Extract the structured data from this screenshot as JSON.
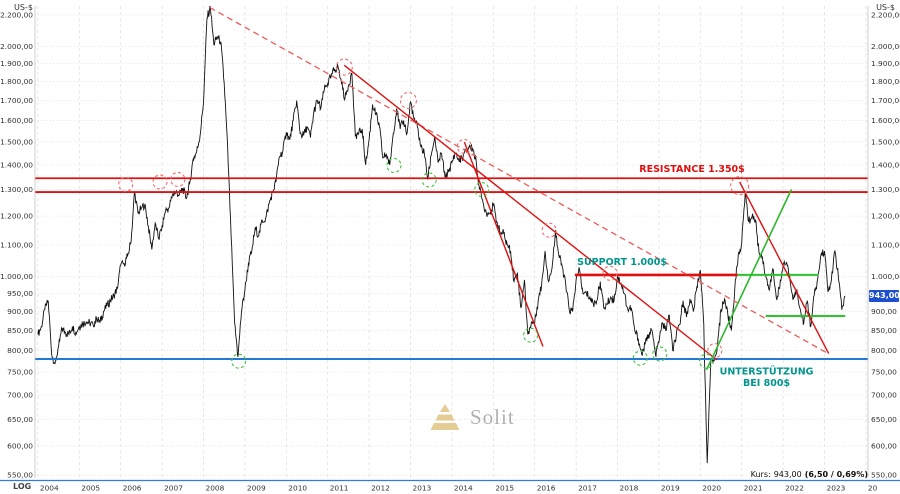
{
  "header": {
    "currency_left": "US-$",
    "currency_right": "US-$"
  },
  "footer": {
    "scale_label": "LOG",
    "quote_prefix": "Kurs:",
    "quote_value": "943,00",
    "quote_change": "(6,50 / 0,69%)"
  },
  "price_tag": {
    "value": "943,00",
    "bg_color": "#1d4fd0"
  },
  "watermark": {
    "text": "Solit",
    "pyramid_color": "#d8b867"
  },
  "colors": {
    "resistance_red": "#e01010",
    "support_blue": "#2478d8",
    "trend_green": "#2db82d",
    "label_teal": "#00958d"
  },
  "chart_data": {
    "type": "line",
    "yscale": "log",
    "ylim": [
      545,
      2260
    ],
    "xlim": [
      2003.93,
      2024.05
    ],
    "grid": true,
    "series": [
      {
        "name": "price",
        "color": "#111111",
        "start_year": 2004,
        "interval": "monthly",
        "values": [
          840,
          860,
          905,
          930,
          790,
          770,
          810,
          855,
          845,
          840,
          860,
          845,
          860,
          868,
          872,
          870,
          865,
          880,
          872,
          900,
          915,
          930,
          945,
          965,
          1035,
          1040,
          1065,
          1110,
          1290,
          1210,
          1230,
          1245,
          1165,
          1085,
          1175,
          1120,
          1165,
          1220,
          1230,
          1280,
          1290,
          1280,
          1305,
          1265,
          1325,
          1425,
          1455,
          1530,
          1690,
          2180,
          2250,
          2010,
          2060,
          2030,
          1790,
          1470,
          1130,
          870,
          785,
          900,
          960,
          1040,
          1080,
          1160,
          1130,
          1185,
          1190,
          1245,
          1290,
          1330,
          1435,
          1460,
          1545,
          1510,
          1600,
          1700,
          1540,
          1530,
          1570,
          1520,
          1645,
          1700,
          1660,
          1755,
          1790,
          1830,
          1870,
          1880,
          1790,
          1710,
          1780,
          1845,
          1530,
          1540,
          1560,
          1400,
          1510,
          1680,
          1630,
          1570,
          1430,
          1445,
          1400,
          1540,
          1660,
          1560,
          1600,
          1540,
          1695,
          1610,
          1570,
          1480,
          1450,
          1340,
          1440,
          1525,
          1410,
          1450,
          1350,
          1370,
          1410,
          1450,
          1420,
          1430,
          1460,
          1480,
          1470,
          1420,
          1300,
          1250,
          1210,
          1210,
          1240,
          1180,
          1140,
          1140,
          1100,
          1080,
          985,
          1010,
          910,
          990,
          840,
          870,
          870,
          930,
          975,
          1080,
          985,
          1025,
          1150,
          1065,
          1030,
          975,
          905,
          900,
          990,
          1020,
          950,
          950,
          940,
          920,
          930,
          985,
          910,
          920,
          940,
          930,
          1000,
          980,
          950,
          905,
          910,
          850,
          830,
          790,
          815,
          840,
          850,
          790,
          820,
          870,
          850,
          890,
          800,
          835,
          865,
          930,
          885,
          935,
          900,
          970,
          1020,
          865,
          570,
          770,
          775,
          815,
          905,
          935,
          890,
          850,
          965,
          1070,
          1105,
          1290,
          1180,
          1200,
          1185,
          1075,
          1060,
          1000,
          960,
          1025,
          940,
          965,
          1035,
          1045,
          990,
          935,
          960,
          905,
          870,
          930,
          860,
          945,
          990,
          1070,
          1080,
          955,
          990,
          1080,
          1000,
          905,
          943
        ]
      }
    ],
    "y_ticks": [
      {
        "v": 2200,
        "label": "2.200,00"
      },
      {
        "v": 2000,
        "label": "2.000,00"
      },
      {
        "v": 1900,
        "label": "1.900,00"
      },
      {
        "v": 1800,
        "label": "1.800,00"
      },
      {
        "v": 1700,
        "label": "1.700,00"
      },
      {
        "v": 1600,
        "label": "1.600,00"
      },
      {
        "v": 1500,
        "label": "1.500,00"
      },
      {
        "v": 1400,
        "label": "1.400,00"
      },
      {
        "v": 1300,
        "label": "1.300,00"
      },
      {
        "v": 1200,
        "label": "1.200,00"
      },
      {
        "v": 1100,
        "label": "1.100,00"
      },
      {
        "v": 1000,
        "label": "1.000,00"
      },
      {
        "v": 950,
        "label": "950,00"
      },
      {
        "v": 900,
        "label": "900,00"
      },
      {
        "v": 850,
        "label": "850,00"
      },
      {
        "v": 800,
        "label": "800,00"
      },
      {
        "v": 750,
        "label": "750,00"
      },
      {
        "v": 700,
        "label": "700,00"
      },
      {
        "v": 650,
        "label": "650,00"
      },
      {
        "v": 600,
        "label": "600,00"
      },
      {
        "v": 550,
        "label": "550,00"
      }
    ],
    "x_ticks": [
      {
        "v": 2004,
        "label": "2004"
      },
      {
        "v": 2005,
        "label": "2005"
      },
      {
        "v": 2006,
        "label": "2006"
      },
      {
        "v": 2007,
        "label": "2007"
      },
      {
        "v": 2008,
        "label": "2008"
      },
      {
        "v": 2009,
        "label": "2009"
      },
      {
        "v": 2010,
        "label": "2010"
      },
      {
        "v": 2011,
        "label": "2011"
      },
      {
        "v": 2012,
        "label": "2012"
      },
      {
        "v": 2013,
        "label": "2013"
      },
      {
        "v": 2014,
        "label": "2014"
      },
      {
        "v": 2015,
        "label": "2015"
      },
      {
        "v": 2016,
        "label": "2016"
      },
      {
        "v": 2017,
        "label": "2017"
      },
      {
        "v": 2018,
        "label": "2018"
      },
      {
        "v": 2019,
        "label": "2019"
      },
      {
        "v": 2020,
        "label": "2020"
      },
      {
        "v": 2021,
        "label": "2021"
      },
      {
        "v": 2022,
        "label": "2022"
      },
      {
        "v": 2023,
        "label": "2023"
      },
      {
        "v": 2024,
        "label": "20"
      }
    ],
    "annotations": {
      "hlines": [
        {
          "name": "resistance-line-upper",
          "price": 1345,
          "from": 2003.93,
          "to": 2024.05,
          "color": "#e01010",
          "width": 1.8
        },
        {
          "name": "resistance-line-lower",
          "price": 1290,
          "from": 2003.93,
          "to": 2024.05,
          "color": "#e01010",
          "width": 1.8
        },
        {
          "name": "support-800-line",
          "price": 780,
          "from": 2003.93,
          "to": 2024.05,
          "color": "#2478d8",
          "width": 2
        },
        {
          "name": "support-1000-segment",
          "price": 1005,
          "from": 2016.97,
          "to": 2020.9,
          "color": "#e01010",
          "width": 2.6
        },
        {
          "name": "green-level-1005",
          "price": 1005,
          "from": 2020.9,
          "to": 2022.85,
          "color": "#2dc32d",
          "width": 2
        },
        {
          "name": "green-level-890",
          "price": 888,
          "from": 2021.58,
          "to": 2023.5,
          "color": "#2dc32d",
          "width": 2
        }
      ],
      "trendlines": [
        {
          "name": "downtrend-dashed",
          "x1": 2008.15,
          "p1": 2250,
          "x2": 2023.05,
          "p2": 795,
          "color": "#f05a5a",
          "width": 1.3,
          "dash": "6,4"
        },
        {
          "name": "downtrend-main",
          "x1": 2011.4,
          "p1": 1890,
          "x2": 2020.4,
          "p2": 778,
          "color": "#e01010",
          "width": 1.4
        },
        {
          "name": "downtrend-steep",
          "x1": 2014.3,
          "p1": 1500,
          "x2": 2016.2,
          "p2": 810,
          "color": "#e01010",
          "width": 1.4
        },
        {
          "name": "downtrend-right",
          "x1": 2020.95,
          "p1": 1330,
          "x2": 2023.1,
          "p2": 793,
          "color": "#e01010",
          "width": 1.4
        },
        {
          "name": "uptrend-green",
          "x1": 2020.15,
          "p1": 755,
          "x2": 2022.2,
          "p2": 1300,
          "color": "#2db82d",
          "width": 1.6
        }
      ],
      "circles": [
        {
          "x": 2006.12,
          "p": 1320,
          "kind": "resistance",
          "color": "#f26a6a",
          "r": 7
        },
        {
          "x": 2006.95,
          "p": 1330,
          "kind": "resistance",
          "color": "#f26a6a",
          "r": 7
        },
        {
          "x": 2007.38,
          "p": 1340,
          "kind": "resistance",
          "color": "#f26a6a",
          "r": 7
        },
        {
          "x": 2011.4,
          "p": 1880,
          "kind": "resistance",
          "color": "#f26a6a",
          "r": 8
        },
        {
          "x": 2012.95,
          "p": 1700,
          "kind": "resistance",
          "color": "#f26a6a",
          "r": 8
        },
        {
          "x": 2014.3,
          "p": 1480,
          "kind": "resistance",
          "color": "#f26a6a",
          "r": 7
        },
        {
          "x": 2016.35,
          "p": 1150,
          "kind": "resistance",
          "color": "#f26a6a",
          "r": 7
        },
        {
          "x": 2017.82,
          "p": 1010,
          "kind": "resistance",
          "color": "#f26a6a",
          "r": 7
        },
        {
          "x": 2020.35,
          "p": 800,
          "kind": "resistance",
          "color": "#f26a6a",
          "r": 7
        },
        {
          "x": 2020.95,
          "p": 1315,
          "kind": "resistance",
          "color": "#f26a6a",
          "r": 9
        },
        {
          "x": 2008.85,
          "p": 775,
          "kind": "support",
          "color": "#3fc13f",
          "r": 7
        },
        {
          "x": 2012.6,
          "p": 1398,
          "kind": "support",
          "color": "#3fc13f",
          "r": 7
        },
        {
          "x": 2013.45,
          "p": 1338,
          "kind": "support",
          "color": "#3fc13f",
          "r": 7
        },
        {
          "x": 2014.72,
          "p": 1300,
          "kind": "support",
          "color": "#3fc13f",
          "r": 7
        },
        {
          "x": 2015.9,
          "p": 838,
          "kind": "support",
          "color": "#3fc13f",
          "r": 7
        },
        {
          "x": 2018.55,
          "p": 782,
          "kind": "support",
          "color": "#3fc13f",
          "r": 7
        },
        {
          "x": 2019.02,
          "p": 792,
          "kind": "support",
          "color": "#3fc13f",
          "r": 7
        },
        {
          "x": 2020.15,
          "p": 775,
          "kind": "support",
          "color": "#3fc13f",
          "r": 7
        }
      ],
      "labels": [
        {
          "text": "RESISTANCE 1.350$",
          "x": 2019.8,
          "p": 1370,
          "color": "#e01010",
          "size": 9.5,
          "bold": true
        },
        {
          "text": "SUPPORT 1.000$",
          "x": 2018.11,
          "p": 1035,
          "color": "#00958d",
          "size": 9.5,
          "bold": true
        },
        {
          "text": "UNTERSTÜTZUNG",
          "x": 2021.6,
          "p": 745,
          "color": "#00958d",
          "size": 9.5,
          "bold": true
        },
        {
          "text": "BEI 800$",
          "x": 2021.6,
          "p": 719,
          "color": "#00958d",
          "size": 9.5,
          "bold": true
        }
      ]
    }
  }
}
